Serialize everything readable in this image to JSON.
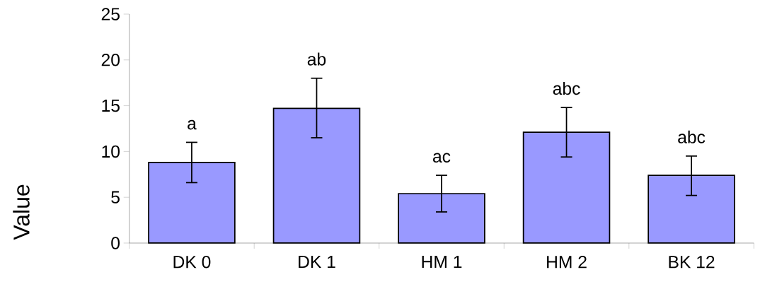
{
  "chart_data": {
    "type": "bar",
    "ylabel": "Value",
    "categories": [
      "DK 0",
      "DK 1",
      "HM 1",
      "HM 2",
      "BK 12"
    ],
    "values": [
      8.8,
      14.7,
      5.4,
      12.1,
      7.4
    ],
    "errors": [
      [
        6.6,
        11.0
      ],
      [
        11.5,
        18.0
      ],
      [
        3.4,
        7.4
      ],
      [
        9.4,
        14.8
      ],
      [
        5.2,
        9.5
      ]
    ],
    "color": "#9999ff",
    "ylim": [
      0,
      25
    ],
    "yticks": [
      0,
      5,
      10,
      15,
      20,
      25
    ],
    "grid": false,
    "annotations": [
      "a",
      "ab",
      "ac",
      "abc",
      "abc"
    ]
  }
}
